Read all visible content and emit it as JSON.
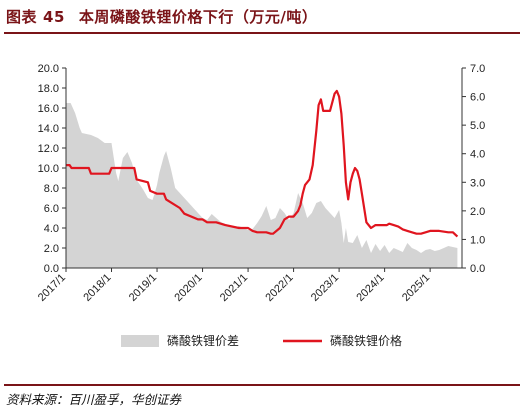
{
  "header": {
    "prefix": "图表",
    "number": "45",
    "title": "本周磷酸铁锂价格下行（万元/吨）"
  },
  "footer": {
    "source": "资料来源：百川盈孚，华创证券"
  },
  "colors": {
    "accent": "#7a1418",
    "price_line": "#e0151f",
    "spread_area": "#d4d4d4"
  },
  "chart_data": {
    "type": "area+line",
    "x_tick_labels": [
      "2017/1",
      "2018/1",
      "2019/1",
      "2020/1",
      "2021/1",
      "2022/1",
      "2023/1",
      "2024/1",
      "2025/1"
    ],
    "left_axis": {
      "range": [
        0,
        20
      ],
      "ticks": [
        "0.0",
        "2.0",
        "4.0",
        "6.0",
        "8.0",
        "10.0",
        "12.0",
        "14.0",
        "16.0",
        "18.0",
        "20.0"
      ]
    },
    "right_axis": {
      "range": [
        0,
        7
      ],
      "ticks": [
        "0.0",
        "1.0",
        "2.0",
        "3.0",
        "4.0",
        "5.0",
        "6.0",
        "7.0"
      ]
    },
    "legend_position": "bottom",
    "series": [
      {
        "name": "磷酸铁锂价差",
        "axis": "left",
        "style": "area",
        "x": [
          2017.0,
          2017.1,
          2017.2,
          2017.3,
          2017.35,
          2017.45,
          2017.55,
          2017.7,
          2017.85,
          2018.0,
          2018.1,
          2018.15,
          2018.25,
          2018.35,
          2018.45,
          2018.55,
          2018.6,
          2018.7,
          2018.8,
          2018.9,
          2018.95,
          2019.0,
          2019.05,
          2019.15,
          2019.2,
          2019.3,
          2019.4,
          2019.5,
          2019.6,
          2019.7,
          2019.8,
          2019.9,
          2020.0,
          2020.1,
          2020.2,
          2020.3,
          2020.4,
          2020.5,
          2020.6,
          2020.7,
          2020.8,
          2020.9,
          2021.0,
          2021.1,
          2021.2,
          2021.3,
          2021.4,
          2021.5,
          2021.6,
          2021.7,
          2021.8,
          2021.9,
          2022.0,
          2022.1,
          2022.2,
          2022.3,
          2022.4,
          2022.5,
          2022.6,
          2022.7,
          2022.8,
          2022.9,
          2023.0,
          2023.05,
          2023.1,
          2023.15,
          2023.2,
          2023.3,
          2023.4,
          2023.5,
          2023.6,
          2023.7,
          2023.8,
          2023.9,
          2024.0,
          2024.1,
          2024.2,
          2024.3,
          2024.4,
          2024.5,
          2024.6,
          2024.7,
          2024.8,
          2024.9,
          2025.0,
          2025.1,
          2025.2,
          2025.3,
          2025.4,
          2025.5,
          2025.6
        ],
        "values": [
          16.5,
          16.5,
          15.5,
          14.0,
          13.5,
          13.4,
          13.3,
          13.0,
          12.5,
          12.5,
          9.5,
          8.7,
          11.0,
          11.6,
          10.5,
          8.8,
          8.5,
          7.8,
          7.0,
          6.8,
          7.5,
          8.3,
          9.5,
          11.2,
          11.7,
          10.0,
          8.0,
          7.5,
          7.0,
          6.5,
          6.0,
          5.5,
          5.0,
          4.8,
          5.4,
          5.0,
          4.6,
          4.4,
          4.3,
          4.0,
          4.2,
          4.0,
          3.8,
          3.9,
          4.5,
          5.2,
          6.2,
          4.8,
          5.0,
          6.0,
          5.5,
          4.8,
          5.5,
          7.5,
          6.5,
          5.0,
          5.5,
          6.5,
          6.7,
          6.0,
          5.5,
          5.0,
          5.8,
          4.5,
          2.5,
          4.0,
          2.6,
          2.5,
          3.3,
          2.0,
          2.8,
          1.5,
          2.4,
          1.7,
          2.3,
          1.5,
          2.0,
          1.8,
          1.6,
          2.5,
          2.0,
          1.8,
          1.5,
          1.8,
          1.9,
          1.7,
          1.8,
          2.0,
          2.2,
          2.1,
          2.0
        ]
      },
      {
        "name": "磷酸铁锂价格",
        "axis": "right",
        "style": "line",
        "x": [
          2017.0,
          2017.08,
          2017.12,
          2017.5,
          2017.55,
          2017.95,
          2018.0,
          2018.05,
          2018.15,
          2018.25,
          2018.5,
          2018.55,
          2018.8,
          2018.85,
          2019.0,
          2019.05,
          2019.15,
          2019.2,
          2019.3,
          2019.5,
          2019.6,
          2019.9,
          2020.0,
          2020.1,
          2020.3,
          2020.5,
          2020.8,
          2021.0,
          2021.1,
          2021.2,
          2021.3,
          2021.4,
          2021.5,
          2021.55,
          2021.7,
          2021.8,
          2021.9,
          2022.0,
          2022.05,
          2022.1,
          2022.15,
          2022.2,
          2022.25,
          2022.3,
          2022.35,
          2022.42,
          2022.5,
          2022.55,
          2022.6,
          2022.65,
          2022.7,
          2022.8,
          2022.85,
          2022.9,
          2022.95,
          2023.0,
          2023.05,
          2023.1,
          2023.15,
          2023.2,
          2023.25,
          2023.3,
          2023.35,
          2023.4,
          2023.45,
          2023.5,
          2023.6,
          2023.7,
          2023.8,
          2023.9,
          2024.0,
          2024.05,
          2024.1,
          2024.2,
          2024.3,
          2024.4,
          2024.5,
          2024.6,
          2024.7,
          2024.8,
          2024.9,
          2025.0,
          2025.2,
          2025.4,
          2025.5,
          2025.6
        ],
        "values": [
          3.6,
          3.6,
          3.5,
          3.5,
          3.3,
          3.3,
          3.5,
          3.5,
          3.5,
          3.5,
          3.5,
          3.1,
          3.0,
          2.7,
          2.6,
          2.6,
          2.6,
          2.4,
          2.3,
          2.1,
          1.9,
          1.7,
          1.7,
          1.6,
          1.6,
          1.5,
          1.4,
          1.4,
          1.3,
          1.25,
          1.25,
          1.25,
          1.2,
          1.2,
          1.4,
          1.7,
          1.8,
          1.8,
          1.9,
          2.0,
          2.2,
          2.6,
          2.9,
          3.0,
          3.1,
          3.6,
          4.8,
          5.7,
          5.9,
          5.5,
          5.5,
          5.5,
          5.8,
          6.1,
          6.2,
          6.0,
          5.4,
          4.3,
          3.0,
          2.4,
          3.0,
          3.3,
          3.5,
          3.4,
          3.1,
          2.6,
          1.6,
          1.4,
          1.5,
          1.5,
          1.5,
          1.5,
          1.55,
          1.5,
          1.45,
          1.35,
          1.3,
          1.25,
          1.2,
          1.2,
          1.25,
          1.3,
          1.3,
          1.25,
          1.25,
          1.1
        ]
      }
    ]
  }
}
